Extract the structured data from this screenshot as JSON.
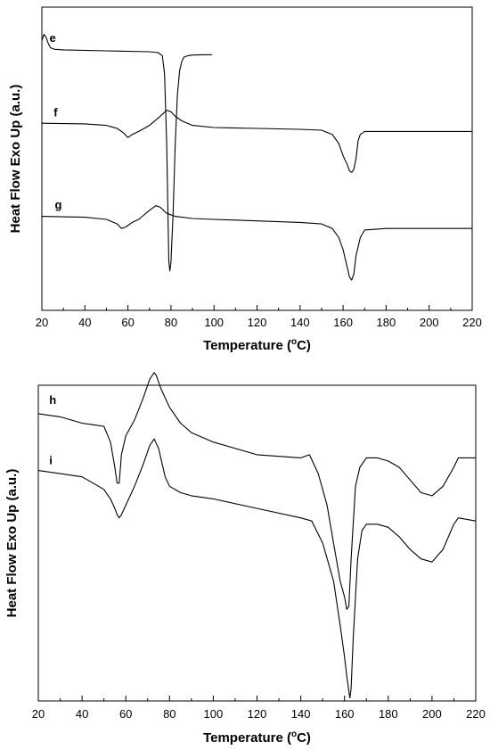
{
  "chart_data": [
    {
      "type": "line",
      "panel": "top",
      "xlabel": "Temperature (°C)",
      "xlabel_main": "Temperature (",
      "xlabel_sup": "o",
      "xlabel_end": "C)",
      "ylabel": "Heat Flow Exo Up (a.u.)",
      "xlim": [
        20,
        220
      ],
      "ylim": [
        0,
        1
      ],
      "x_ticks": [
        "20",
        "40",
        "60",
        "80",
        "100",
        "120",
        "140",
        "160",
        "180",
        "200",
        "220"
      ],
      "y_ticks_labeled": false,
      "grid": false,
      "curve_labels": [
        "e",
        "f",
        "g"
      ],
      "series": [
        {
          "name": "e",
          "x": [
            20,
            21,
            22,
            23,
            24,
            26,
            30,
            50,
            70,
            74,
            76,
            77,
            78,
            79,
            79.5,
            80,
            81,
            82,
            83,
            84,
            85,
            86,
            88,
            90,
            95,
            99
          ],
          "y": [
            0.89,
            0.91,
            0.9,
            0.88,
            0.866,
            0.861,
            0.859,
            0.856,
            0.853,
            0.85,
            0.84,
            0.78,
            0.55,
            0.16,
            0.13,
            0.16,
            0.32,
            0.55,
            0.71,
            0.79,
            0.82,
            0.835,
            0.84,
            0.842,
            0.843,
            0.843
          ]
        },
        {
          "name": "f",
          "x": [
            20,
            40,
            50,
            55,
            58,
            60,
            62,
            65,
            70,
            75,
            78,
            80,
            82,
            85,
            90,
            100,
            120,
            140,
            150,
            155,
            158,
            160,
            162,
            163,
            164,
            165,
            166,
            167,
            168,
            170,
            175,
            180,
            200,
            220
          ],
          "y": [
            0.617,
            0.615,
            0.61,
            0.6,
            0.585,
            0.57,
            0.58,
            0.59,
            0.61,
            0.64,
            0.66,
            0.655,
            0.64,
            0.625,
            0.61,
            0.603,
            0.6,
            0.597,
            0.594,
            0.58,
            0.55,
            0.51,
            0.48,
            0.46,
            0.455,
            0.465,
            0.5,
            0.56,
            0.58,
            0.59,
            0.59,
            0.59,
            0.59,
            0.59
          ]
        },
        {
          "name": "g",
          "x": [
            20,
            40,
            50,
            55,
            57,
            59,
            62,
            65,
            70,
            73,
            75,
            78,
            82,
            90,
            100,
            120,
            140,
            150,
            155,
            158,
            160,
            162,
            163,
            164,
            165,
            166,
            168,
            170,
            180,
            200,
            220
          ],
          "y": [
            0.31,
            0.307,
            0.3,
            0.285,
            0.27,
            0.275,
            0.29,
            0.3,
            0.33,
            0.345,
            0.34,
            0.32,
            0.31,
            0.303,
            0.3,
            0.295,
            0.29,
            0.285,
            0.27,
            0.24,
            0.2,
            0.14,
            0.11,
            0.1,
            0.12,
            0.18,
            0.24,
            0.265,
            0.27,
            0.27,
            0.27
          ]
        }
      ]
    },
    {
      "type": "line",
      "panel": "bottom",
      "xlabel": "Temperature (°C)",
      "xlabel_main": "Temperature (",
      "xlabel_sup": "o",
      "xlabel_end": "C)",
      "ylabel": "Heat Flow Exo Up (a.u.)",
      "xlim": [
        20,
        220
      ],
      "ylim": [
        0,
        1
      ],
      "x_ticks": [
        "20",
        "40",
        "60",
        "80",
        "100",
        "120",
        "140",
        "160",
        "180",
        "200",
        "220"
      ],
      "y_ticks_labeled": false,
      "grid": false,
      "curve_labels": [
        "h",
        "i"
      ],
      "series": [
        {
          "name": "h",
          "x": [
            20,
            30,
            40,
            45,
            50,
            53,
            55,
            56,
            57,
            58,
            60,
            64,
            68,
            71,
            73,
            74,
            76,
            80,
            85,
            90,
            100,
            120,
            140,
            144,
            148,
            152,
            155,
            158,
            160,
            161,
            162,
            163,
            165,
            167,
            170,
            175,
            180,
            185,
            190,
            195,
            200,
            205,
            210,
            212,
            220
          ],
          "y": [
            0.91,
            0.9,
            0.88,
            0.875,
            0.87,
            0.82,
            0.74,
            0.69,
            0.69,
            0.78,
            0.84,
            0.89,
            0.96,
            1.02,
            1.04,
            1.03,
            0.99,
            0.93,
            0.88,
            0.85,
            0.82,
            0.78,
            0.77,
            0.78,
            0.72,
            0.62,
            0.5,
            0.38,
            0.33,
            0.29,
            0.3,
            0.45,
            0.68,
            0.74,
            0.77,
            0.77,
            0.76,
            0.74,
            0.7,
            0.66,
            0.65,
            0.68,
            0.74,
            0.77,
            0.77
          ]
        },
        {
          "name": "i",
          "x": [
            20,
            30,
            40,
            45,
            50,
            53,
            55,
            56,
            57,
            58,
            60,
            64,
            68,
            71,
            73,
            75,
            78,
            80,
            85,
            90,
            100,
            120,
            140,
            145,
            150,
            155,
            158,
            160,
            161,
            162,
            162.5,
            163,
            164,
            166,
            168,
            170,
            175,
            180,
            185,
            190,
            195,
            200,
            205,
            210,
            212,
            220
          ],
          "y": [
            0.73,
            0.72,
            0.71,
            0.69,
            0.67,
            0.64,
            0.61,
            0.59,
            0.58,
            0.59,
            0.62,
            0.68,
            0.75,
            0.81,
            0.83,
            0.8,
            0.71,
            0.68,
            0.66,
            0.65,
            0.64,
            0.61,
            0.58,
            0.57,
            0.5,
            0.38,
            0.24,
            0.14,
            0.08,
            0.03,
            0.01,
            0.04,
            0.2,
            0.45,
            0.54,
            0.56,
            0.56,
            0.55,
            0.52,
            0.48,
            0.45,
            0.44,
            0.48,
            0.56,
            0.58,
            0.57
          ]
        }
      ]
    }
  ]
}
